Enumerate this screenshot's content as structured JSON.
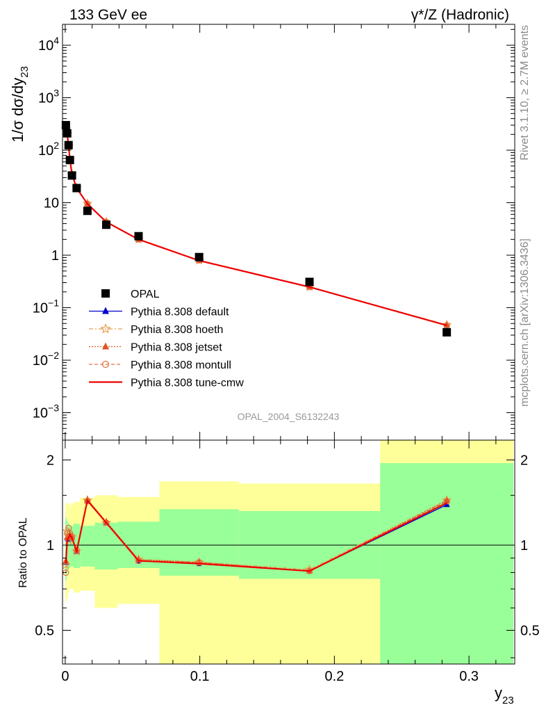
{
  "header": {
    "left": "133 GeV ee",
    "right": "γ*/Z (Hadronic)"
  },
  "side_texts": {
    "rivet": "Rivet 3.1.10, ≥ 2.7M events",
    "mcplots": "mcplots.cern.ch [arXiv:1306.3436]"
  },
  "watermark": "OPAL_2004_S6132243",
  "main_ylabel": "1/σ dσ/dy",
  "main_ylabel_sub": "23",
  "ratio_ylabel": "Ratio to OPAL",
  "xlabel": "y",
  "xlabel_sub": "23",
  "chart_data": [
    {
      "type": "scatter",
      "panel": "main",
      "yscale": "log",
      "ylim": [
        0.0003,
        25000
      ],
      "xlim": [
        -0.002,
        0.334
      ],
      "grid": false,
      "legend_position": "bottom-left",
      "xtick_labels": [
        "0",
        "0.1",
        "0.2",
        "0.3"
      ],
      "ytick_labels": [
        {
          "base": "10",
          "exp": "−3"
        },
        {
          "base": "10",
          "exp": "−2"
        },
        {
          "base": "10",
          "exp": "−1"
        },
        {
          "base": "1",
          "exp": ""
        },
        {
          "base": "10",
          "exp": ""
        },
        {
          "base": "10",
          "exp": "2"
        },
        {
          "base": "10",
          "exp": "3"
        },
        {
          "base": "10",
          "exp": "4"
        }
      ],
      "ytick_values": [
        0.001,
        0.01,
        0.1,
        1,
        10,
        100,
        1000,
        10000
      ],
      "data": {
        "name": "OPAL",
        "x": [
          0.0005,
          0.0015,
          0.0025,
          0.0035,
          0.005,
          0.0085,
          0.0165,
          0.0305,
          0.0545,
          0.0995,
          0.1815,
          0.2835
        ],
        "y": [
          300,
          210,
          125,
          65,
          33,
          19,
          7,
          3.8,
          2.3,
          0.92,
          0.31,
          0.034
        ]
      },
      "series": [
        {
          "name": "Pythia 8.308 default",
          "color": "#0000cc",
          "marker": "triangle",
          "dash": "solid",
          "x": [
            0.0005,
            0.0015,
            0.0025,
            0.0035,
            0.005,
            0.0085,
            0.0165,
            0.0305,
            0.0545,
            0.0995,
            0.1815,
            0.2835
          ],
          "y": [
            260,
            200,
            120,
            68,
            35,
            19,
            9.5,
            4.3,
            2.0,
            0.79,
            0.245,
            0.046
          ]
        },
        {
          "name": "Pythia 8.308 hoeth",
          "color": "#e8a050",
          "marker": "star",
          "dash": "6,3,2,3",
          "x": [
            0.0005,
            0.0015,
            0.0025,
            0.0035,
            0.005,
            0.0085,
            0.0165,
            0.0305,
            0.0545,
            0.0995,
            0.1815,
            0.2835
          ],
          "y": [
            255,
            205,
            118,
            66,
            35,
            19,
            9.6,
            4.3,
            2.0,
            0.8,
            0.25,
            0.047
          ]
        },
        {
          "name": "Pythia 8.308 jetset",
          "color": "#dd5522",
          "marker": "triangle",
          "dash": "2,2",
          "x": [
            0.0005,
            0.0015,
            0.0025,
            0.0035,
            0.005,
            0.0085,
            0.0165,
            0.0305,
            0.0545,
            0.0995,
            0.1815,
            0.2835
          ],
          "y": [
            265,
            200,
            121,
            67,
            35,
            19,
            9.6,
            4.35,
            2.0,
            0.8,
            0.25,
            0.047
          ]
        },
        {
          "name": "Pythia 8.308 montull",
          "color": "#e07040",
          "marker": "circle",
          "dash": "5,3",
          "x": [
            0.0005,
            0.0015,
            0.0025,
            0.0035,
            0.005,
            0.0085,
            0.0165,
            0.0305,
            0.0545,
            0.0995,
            0.1815,
            0.2835
          ],
          "y": [
            240,
            210,
            122,
            68,
            35,
            19,
            9.5,
            4.3,
            2.0,
            0.8,
            0.25,
            0.046
          ]
        },
        {
          "name": "Pythia 8.308 tune-cmw",
          "color": "#ee0000",
          "marker": "none",
          "dash": "solid",
          "x": [
            0.0005,
            0.0015,
            0.0025,
            0.0035,
            0.005,
            0.0085,
            0.0165,
            0.0305,
            0.0545,
            0.0995,
            0.1815,
            0.2835
          ],
          "y": [
            258,
            205,
            120,
            67,
            35,
            19,
            9.5,
            4.3,
            2.0,
            0.79,
            0.248,
            0.046
          ]
        }
      ]
    },
    {
      "type": "line",
      "panel": "ratio",
      "yscale": "log",
      "ylim": [
        0.38,
        2.35
      ],
      "xlim": [
        -0.002,
        0.334
      ],
      "ylabel": "Ratio to OPAL",
      "ytick_labels": [
        "0.5",
        "1",
        "2"
      ],
      "ytick_values": [
        0.5,
        1,
        2
      ],
      "reference_line": 1,
      "uncertainty_bands": [
        {
          "x": [
            0.0,
            0.001
          ],
          "inner": [
            0.75,
            1.25
          ],
          "outer": [
            0.63,
            1.4
          ]
        },
        {
          "x": [
            0.001,
            0.002
          ],
          "inner": [
            0.8,
            1.22
          ],
          "outer": [
            0.65,
            1.42
          ]
        },
        {
          "x": [
            0.002,
            0.003
          ],
          "inner": [
            0.82,
            1.2
          ],
          "outer": [
            0.68,
            1.4
          ]
        },
        {
          "x": [
            0.003,
            0.004
          ],
          "inner": [
            0.83,
            1.18
          ],
          "outer": [
            0.7,
            1.38
          ]
        },
        {
          "x": [
            0.004,
            0.006
          ],
          "inner": [
            0.84,
            1.17
          ],
          "outer": [
            0.7,
            1.4
          ]
        },
        {
          "x": [
            0.006,
            0.011
          ],
          "inner": [
            0.83,
            1.19
          ],
          "outer": [
            0.68,
            1.42
          ]
        },
        {
          "x": [
            0.011,
            0.022
          ],
          "inner": [
            0.84,
            1.17
          ],
          "outer": [
            0.69,
            1.47
          ]
        },
        {
          "x": [
            0.022,
            0.039
          ],
          "inner": [
            0.82,
            1.2
          ],
          "outer": [
            0.6,
            1.5
          ]
        },
        {
          "x": [
            0.039,
            0.07
          ],
          "inner": [
            0.83,
            1.21
          ],
          "outer": [
            0.62,
            1.48
          ]
        },
        {
          "x": [
            0.07,
            0.129
          ],
          "inner": [
            0.78,
            1.34
          ],
          "outer": [
            0.38,
            1.68
          ]
        },
        {
          "x": [
            0.129,
            0.234
          ],
          "inner": [
            0.76,
            1.32
          ],
          "outer": [
            0.38,
            1.65
          ]
        },
        {
          "x": [
            0.234,
            0.333
          ],
          "inner": [
            0.38,
            1.95
          ],
          "outer": [
            0.38,
            2.35
          ]
        }
      ],
      "series": [
        {
          "name": "Pythia 8.308 default",
          "color": "#0000cc",
          "marker": "triangle",
          "dash": "solid",
          "x": [
            0.0005,
            0.0015,
            0.0025,
            0.0035,
            0.005,
            0.0085,
            0.0165,
            0.0305,
            0.0545,
            0.0995,
            0.1815,
            0.2835
          ],
          "y": [
            0.87,
            1.06,
            1.05,
            1.09,
            1.06,
            0.95,
            1.43,
            1.2,
            0.88,
            0.86,
            0.81,
            1.39
          ]
        },
        {
          "name": "Pythia 8.308 hoeth",
          "color": "#e8a050",
          "marker": "star",
          "dash": "6,3,2,3",
          "x": [
            0.0005,
            0.0015,
            0.0025,
            0.0035,
            0.005,
            0.0085,
            0.0165,
            0.0305,
            0.0545,
            0.0995,
            0.1815,
            0.2835
          ],
          "y": [
            0.85,
            1.12,
            1.04,
            1.08,
            1.07,
            0.95,
            1.44,
            1.2,
            0.89,
            0.87,
            0.82,
            1.44
          ]
        },
        {
          "name": "Pythia 8.308 jetset",
          "color": "#dd5522",
          "marker": "triangle",
          "dash": "2,2",
          "x": [
            0.0005,
            0.0015,
            0.0025,
            0.0035,
            0.005,
            0.0085,
            0.0165,
            0.0305,
            0.0545,
            0.0995,
            0.1815,
            0.2835
          ],
          "y": [
            0.88,
            1.07,
            1.06,
            1.09,
            1.07,
            0.96,
            1.45,
            1.21,
            0.89,
            0.87,
            0.81,
            1.44
          ]
        },
        {
          "name": "Pythia 8.308 montull",
          "color": "#e07040",
          "marker": "circle",
          "dash": "5,3",
          "x": [
            0.0005,
            0.0015,
            0.0025,
            0.0035,
            0.005,
            0.0085,
            0.0165,
            0.0305,
            0.0545,
            0.0995,
            0.1815,
            0.2835
          ],
          "y": [
            0.8,
            1.1,
            1.15,
            1.1,
            1.07,
            0.96,
            1.43,
            1.2,
            0.88,
            0.87,
            0.81,
            1.43
          ]
        },
        {
          "name": "Pythia 8.308 tune-cmw",
          "color": "#ee0000",
          "marker": "none",
          "dash": "solid",
          "x": [
            0.0005,
            0.0015,
            0.0025,
            0.0035,
            0.005,
            0.0085,
            0.0165,
            0.0305,
            0.0545,
            0.0995,
            0.1815,
            0.2835
          ],
          "y": [
            0.86,
            1.05,
            1.06,
            1.09,
            1.06,
            0.95,
            1.44,
            1.2,
            0.88,
            0.86,
            0.81,
            1.41
          ]
        }
      ]
    }
  ]
}
